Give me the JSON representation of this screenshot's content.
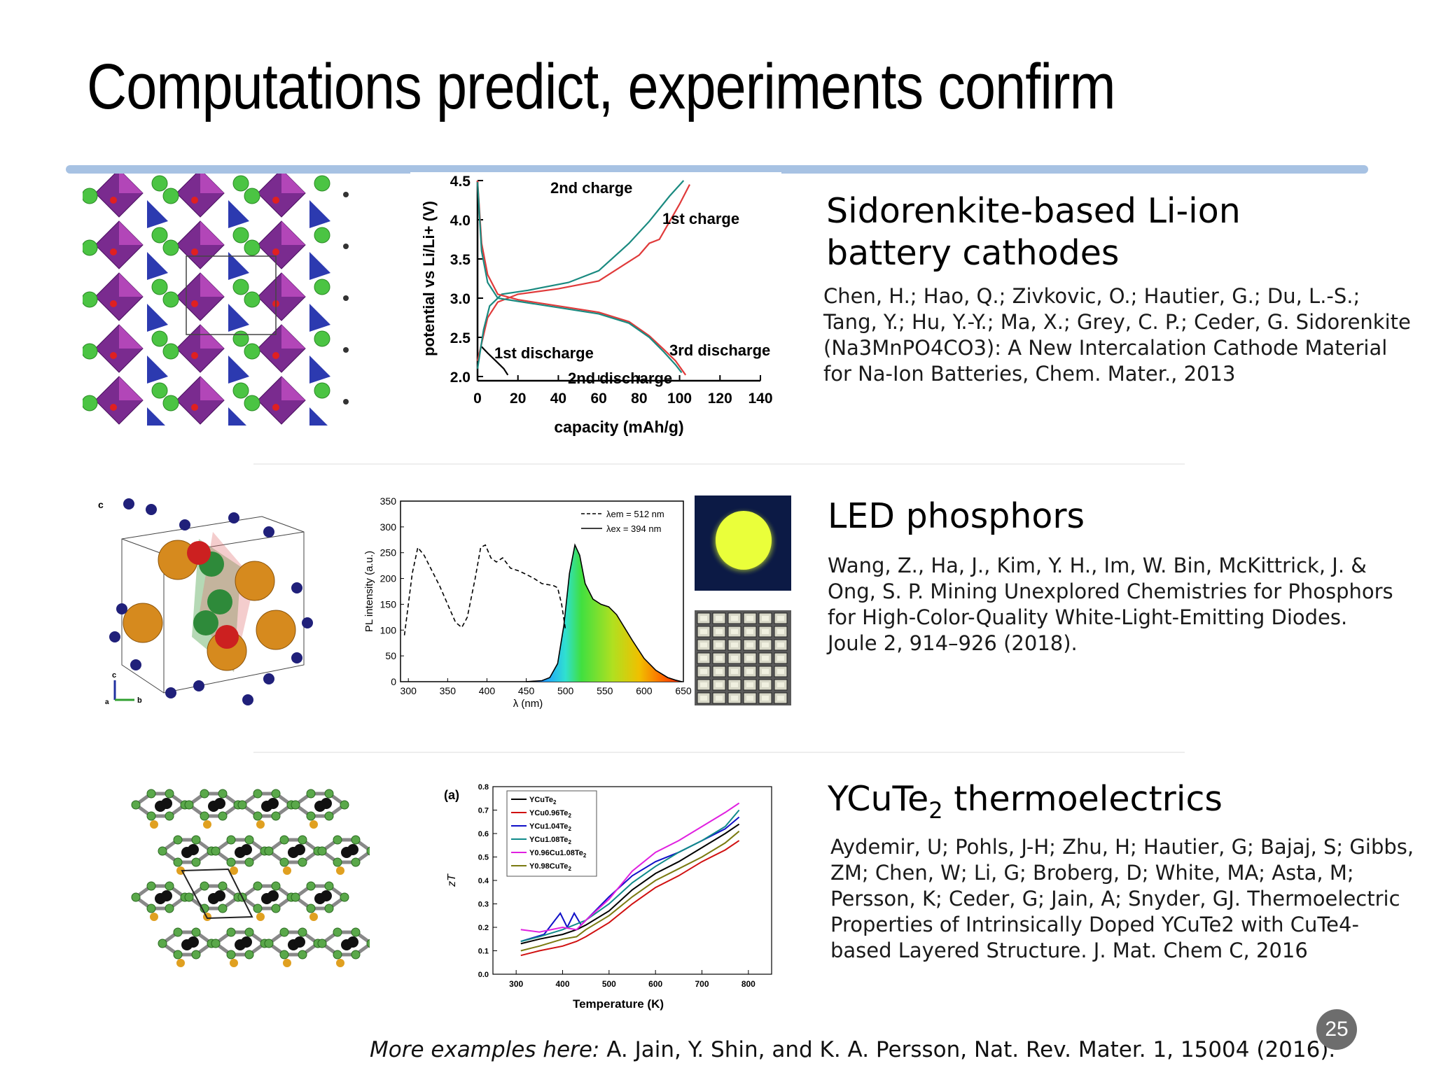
{
  "slide": {
    "title": "Computations predict, experiments confirm",
    "page_number": "25",
    "footer_label": "More examples here:",
    "footer_ref": " A. Jain, Y. Shin, and K. A. Persson, Nat. Rev. Mater. 1, 15004 (2016)."
  },
  "sections": {
    "battery": {
      "heading": "Sidorenkite-based Li-ion battery cathodes",
      "citation": "Chen, H.; Hao, Q.; Zivkovic, O.; Hautier, G.; Du, L.-S.; Tang, Y.; Hu, Y.-Y.; Ma, X.; Grey, C. P.; Ceder, G. Sidorenkite (Na3MnPO4CO3): A New Intercalation Cathode Material for Na-Ion Batteries, Chem. Mater., 2013"
    },
    "led": {
      "heading": "LED phosphors",
      "citation": "Wang, Z., Ha, J., Kim, Y. H., Im, W. Bin, McKittrick, J. & Ong, S. P. Mining Unexplored Chemistries for Phosphors for High-Color-Quality White-Light-Emitting Diodes. Joule 2, 914–926 (2018)."
    },
    "thermo": {
      "heading_main": "YCuTe",
      "heading_sub": "2",
      "heading_rest": " thermoelectrics",
      "citation": "Aydemir, U; Pohls, J-H; Zhu, H; Hautier, G; Bajaj, S; Gibbs, ZM; Chen, W; Li, G; Broberg, D; White, MA; Asta, M; Persson, K; Ceder, G; Jain, A; Snyder, GJ. Thermoelectric Properties of Intrinsically Doped YCuTe2 with CuTe4-based Layered Structure. J. Mat. Chem C, 2016"
    }
  },
  "chart_data": [
    {
      "type": "line",
      "xlabel": "capacity (mAh/g)",
      "ylabel": "potential vs Li/Li+ (V)",
      "xlim": [
        0,
        140
      ],
      "ylim": [
        2.0,
        4.5
      ],
      "xticks": [
        "0",
        "20",
        "40",
        "60",
        "80",
        "100",
        "120",
        "140"
      ],
      "yticks": [
        "2.0",
        "2.5",
        "3.0",
        "3.5",
        "4.0",
        "4.5"
      ],
      "annotations": [
        "2nd charge",
        "1st charge",
        "1st discharge",
        "2nd discharge",
        "3rd discharge"
      ],
      "series": [
        {
          "name": "1st discharge",
          "color": "#000000",
          "x": [
            2,
            5,
            9,
            13,
            15
          ],
          "y": [
            2.38,
            2.3,
            2.2,
            2.1,
            2.02
          ]
        },
        {
          "name": "1st charge",
          "color": "#e03a3a",
          "x": [
            0,
            5,
            10,
            20,
            40,
            60,
            80,
            85,
            90,
            100,
            105
          ],
          "y": [
            2.2,
            2.75,
            2.95,
            3.05,
            3.12,
            3.22,
            3.55,
            3.7,
            3.75,
            4.2,
            4.45
          ]
        },
        {
          "name": "2nd charge",
          "color": "#1a8a80",
          "x": [
            0,
            3,
            6,
            12,
            25,
            45,
            60,
            75,
            85,
            95,
            102
          ],
          "y": [
            2.1,
            2.6,
            2.9,
            3.05,
            3.1,
            3.2,
            3.35,
            3.7,
            3.98,
            4.3,
            4.5
          ]
        },
        {
          "name": "discharge",
          "color": "#e03a3a",
          "x": [
            0,
            2,
            5,
            10,
            20,
            40,
            60,
            75,
            85,
            92,
            98,
            103
          ],
          "y": [
            4.5,
            3.7,
            3.3,
            3.05,
            2.98,
            2.9,
            2.82,
            2.7,
            2.52,
            2.35,
            2.2,
            2.02
          ]
        },
        {
          "name": "discharge 2",
          "color": "#1a8a80",
          "x": [
            0,
            2,
            5,
            10,
            20,
            40,
            60,
            75,
            85,
            92,
            98,
            101
          ],
          "y": [
            4.48,
            3.6,
            3.2,
            3.0,
            2.96,
            2.88,
            2.8,
            2.68,
            2.5,
            2.32,
            2.15,
            2.05
          ]
        }
      ]
    },
    {
      "type": "line",
      "xlabel": "λ (nm)",
      "ylabel": "PL intensity (a.u.)",
      "xlim": [
        290,
        650
      ],
      "ylim": [
        0,
        350
      ],
      "xticks": [
        "300",
        "350",
        "400",
        "450",
        "500",
        "550",
        "600",
        "650"
      ],
      "yticks": [
        "0",
        "50",
        "100",
        "150",
        "200",
        "250",
        "300",
        "350"
      ],
      "legend": [
        "λem = 512 nm",
        "λex = 394 nm"
      ],
      "series": [
        {
          "name": "λem = 512 nm",
          "style": "dashed",
          "x": [
            295,
            300,
            305,
            312,
            320,
            330,
            340,
            350,
            360,
            368,
            375,
            385,
            392,
            398,
            405,
            412,
            420,
            430,
            440,
            450,
            460,
            470,
            478,
            485,
            490,
            495,
            500
          ],
          "y": [
            90,
            150,
            210,
            260,
            245,
            215,
            185,
            150,
            115,
            105,
            125,
            200,
            260,
            265,
            240,
            232,
            240,
            220,
            215,
            208,
            200,
            190,
            188,
            186,
            182,
            150,
            100
          ]
        },
        {
          "name": "λex = 394 nm",
          "style": "solid",
          "x": [
            450,
            470,
            480,
            490,
            498,
            505,
            512,
            518,
            525,
            535,
            545,
            555,
            565,
            575,
            585,
            600,
            615,
            630,
            640,
            648
          ],
          "y": [
            0,
            2,
            8,
            35,
            110,
            210,
            265,
            245,
            190,
            160,
            150,
            145,
            130,
            105,
            80,
            45,
            22,
            8,
            3,
            0
          ]
        }
      ]
    },
    {
      "type": "line",
      "xlabel": "Temperature (K)",
      "ylabel": "zT",
      "panel_label": "(a)",
      "xlim": [
        250,
        850
      ],
      "ylim": [
        0.0,
        0.8
      ],
      "xticks": [
        "300",
        "400",
        "500",
        "600",
        "700",
        "800"
      ],
      "yticks": [
        "0.0",
        "0.1",
        "0.2",
        "0.3",
        "0.4",
        "0.5",
        "0.6",
        "0.7",
        "0.8"
      ],
      "series": [
        {
          "name": "YCuTe2",
          "legend_main": "YCuTe",
          "legend_sub": "2",
          "color": "#000000",
          "x": [
            310,
            350,
            400,
            430,
            450,
            500,
            550,
            600,
            650,
            700,
            750,
            780
          ],
          "y": [
            0.13,
            0.15,
            0.17,
            0.19,
            0.21,
            0.27,
            0.36,
            0.43,
            0.48,
            0.54,
            0.6,
            0.64
          ]
        },
        {
          "name": "YCu0.96Te2",
          "legend_main": "YCu0.96Te",
          "legend_sub": "2",
          "color": "#d01010",
          "x": [
            310,
            350,
            400,
            430,
            450,
            500,
            550,
            600,
            650,
            700,
            750,
            780
          ],
          "y": [
            0.08,
            0.1,
            0.12,
            0.14,
            0.16,
            0.22,
            0.3,
            0.37,
            0.42,
            0.48,
            0.53,
            0.57
          ]
        },
        {
          "name": "YCu1.04Te2",
          "legend_main": "YCu1.04Te",
          "legend_sub": "2",
          "color": "#1010c8",
          "x": [
            310,
            360,
            395,
            410,
            425,
            440,
            460,
            500,
            550,
            600,
            650,
            700,
            750,
            780
          ],
          "y": [
            0.14,
            0.17,
            0.26,
            0.2,
            0.26,
            0.21,
            0.25,
            0.33,
            0.42,
            0.48,
            0.52,
            0.57,
            0.62,
            0.67
          ]
        },
        {
          "name": "YCu1.08Te2",
          "legend_main": "YCu1.08Te",
          "legend_sub": "2",
          "color": "#108a8a",
          "x": [
            310,
            350,
            400,
            450,
            500,
            550,
            600,
            650,
            700,
            750,
            780
          ],
          "y": [
            0.14,
            0.16,
            0.19,
            0.23,
            0.3,
            0.39,
            0.46,
            0.52,
            0.57,
            0.63,
            0.7
          ]
        },
        {
          "name": "Y0.96Cu1.08Te2",
          "legend_main": "Y0.96Cu1.08Te",
          "legend_sub": "2",
          "color": "#e020e0",
          "x": [
            310,
            350,
            400,
            430,
            450,
            500,
            550,
            600,
            650,
            700,
            750,
            780
          ],
          "y": [
            0.19,
            0.18,
            0.2,
            0.19,
            0.23,
            0.32,
            0.44,
            0.52,
            0.57,
            0.63,
            0.69,
            0.73
          ]
        },
        {
          "name": "Y0.98CuTe2",
          "legend_main": "Y0.98CuTe",
          "legend_sub": "2",
          "color": "#7a7a10",
          "x": [
            310,
            350,
            400,
            430,
            450,
            500,
            550,
            600,
            650,
            700,
            750,
            780
          ],
          "y": [
            0.1,
            0.12,
            0.15,
            0.16,
            0.19,
            0.25,
            0.33,
            0.4,
            0.45,
            0.5,
            0.56,
            0.61
          ]
        }
      ]
    }
  ]
}
